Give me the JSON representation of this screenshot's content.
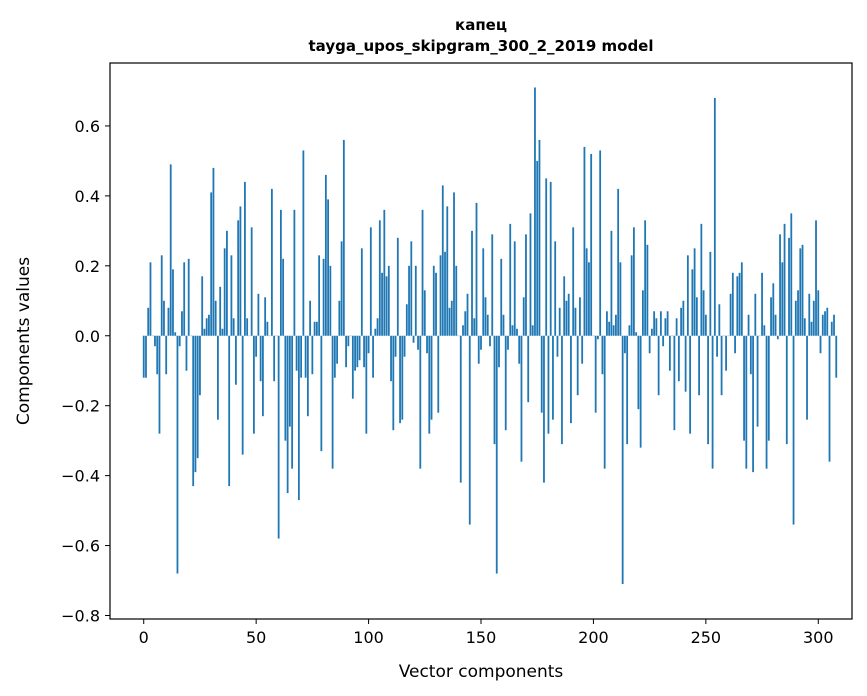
{
  "chart_data": {
    "type": "bar",
    "title_line1": "капец",
    "title_line2": "tayga_upos_skipgram_300_2_2019 model",
    "xlabel": "Vector components",
    "ylabel": "Components values",
    "xlim": [
      -15,
      315
    ],
    "ylim": [
      -0.81,
      0.78
    ],
    "xticks": [
      0,
      50,
      100,
      150,
      200,
      250,
      300
    ],
    "xtick_labels": [
      "0",
      "50",
      "100",
      "150",
      "200",
      "250",
      "300"
    ],
    "yticks": [
      -0.8,
      -0.6,
      -0.4,
      -0.2,
      0.0,
      0.2,
      0.4,
      0.6
    ],
    "ytick_labels": [
      "−0.8",
      "−0.6",
      "−0.4",
      "−0.2",
      "0.0",
      "0.2",
      "0.4",
      "0.6"
    ],
    "bar_color": "#1f77b4",
    "grid": false,
    "values": [
      -0.12,
      -0.12,
      0.08,
      0.21,
      0.0,
      -0.03,
      -0.11,
      -0.28,
      0.23,
      0.1,
      -0.11,
      0.08,
      0.49,
      0.19,
      0.01,
      -0.68,
      -0.03,
      0.07,
      0.21,
      -0.1,
      0.22,
      0.0,
      -0.43,
      -0.39,
      -0.35,
      -0.17,
      0.17,
      0.02,
      0.05,
      0.06,
      0.41,
      0.48,
      0.1,
      -0.24,
      0.14,
      0.02,
      0.25,
      0.3,
      -0.43,
      0.23,
      0.05,
      -0.14,
      0.33,
      0.37,
      -0.34,
      0.44,
      0.05,
      0.0,
      0.31,
      -0.28,
      -0.06,
      0.12,
      -0.13,
      -0.23,
      0.11,
      0.04,
      0.0,
      0.42,
      -0.13,
      0.0,
      -0.58,
      0.36,
      0.22,
      -0.3,
      -0.45,
      -0.26,
      -0.38,
      0.36,
      -0.1,
      -0.47,
      -0.12,
      0.53,
      -0.12,
      -0.23,
      0.1,
      -0.11,
      0.04,
      0.04,
      0.23,
      -0.33,
      0.22,
      0.46,
      0.39,
      0.2,
      -0.38,
      -0.12,
      -0.08,
      0.1,
      0.27,
      0.56,
      -0.09,
      -0.03,
      0.0,
      -0.18,
      -0.1,
      -0.09,
      -0.07,
      0.25,
      -0.09,
      -0.28,
      -0.05,
      0.31,
      -0.12,
      0.02,
      0.05,
      0.33,
      0.18,
      0.36,
      0.17,
      0.2,
      -0.13,
      -0.27,
      -0.06,
      0.28,
      -0.25,
      -0.24,
      -0.06,
      0.09,
      0.2,
      0.27,
      -0.02,
      0.2,
      -0.04,
      -0.38,
      0.36,
      0.13,
      -0.05,
      -0.28,
      -0.24,
      0.2,
      0.18,
      -0.22,
      0.23,
      0.43,
      0.24,
      0.37,
      0.08,
      0.1,
      0.41,
      0.2,
      0.0,
      -0.42,
      0.03,
      0.07,
      0.12,
      -0.54,
      0.3,
      0.05,
      0.38,
      -0.08,
      -0.04,
      0.25,
      0.11,
      0.06,
      -0.03,
      0.29,
      -0.31,
      -0.68,
      -0.09,
      0.22,
      0.06,
      -0.27,
      -0.04,
      0.32,
      0.03,
      0.27,
      0.02,
      -0.08,
      -0.36,
      0.11,
      0.29,
      -0.19,
      0.35,
      0.03,
      0.71,
      0.5,
      0.56,
      -0.22,
      -0.42,
      0.45,
      -0.28,
      0.44,
      -0.24,
      0.27,
      -0.06,
      0.08,
      -0.31,
      0.17,
      0.1,
      0.12,
      -0.25,
      0.31,
      0.08,
      -0.17,
      0.11,
      -0.08,
      0.54,
      0.25,
      0.21,
      0.52,
      0.0,
      -0.22,
      -0.01,
      0.53,
      -0.11,
      -0.38,
      0.07,
      0.04,
      0.3,
      0.03,
      0.06,
      0.42,
      0.21,
      -0.71,
      -0.05,
      -0.31,
      0.03,
      0.23,
      0.31,
      0.01,
      -0.21,
      -0.32,
      0.13,
      0.33,
      0.26,
      -0.05,
      0.02,
      0.07,
      0.05,
      -0.17,
      0.07,
      -0.03,
      0.05,
      0.07,
      -0.1,
      0.0,
      -0.27,
      0.05,
      -0.13,
      0.08,
      0.1,
      -0.16,
      0.23,
      -0.28,
      0.19,
      0.25,
      0.11,
      -0.17,
      0.32,
      0.13,
      0.06,
      -0.31,
      0.24,
      -0.38,
      0.68,
      -0.06,
      0.09,
      -0.17,
      0.0,
      -0.1,
      0.0,
      0.12,
      0.18,
      -0.05,
      0.17,
      0.18,
      0.21,
      -0.3,
      -0.38,
      0.06,
      -0.11,
      -0.39,
      0.12,
      -0.26,
      0.0,
      0.18,
      0.03,
      -0.38,
      -0.3,
      0.11,
      0.15,
      0.06,
      -0.01,
      0.29,
      0.21,
      0.32,
      -0.31,
      0.28,
      0.35,
      -0.54,
      0.1,
      0.13,
      0.25,
      0.26,
      0.05,
      -0.24,
      0.12,
      0.04,
      0.1,
      0.33,
      0.13,
      -0.05,
      0.06,
      0.07,
      0.08,
      -0.36,
      0.04,
      0.06,
      -0.12
    ]
  }
}
